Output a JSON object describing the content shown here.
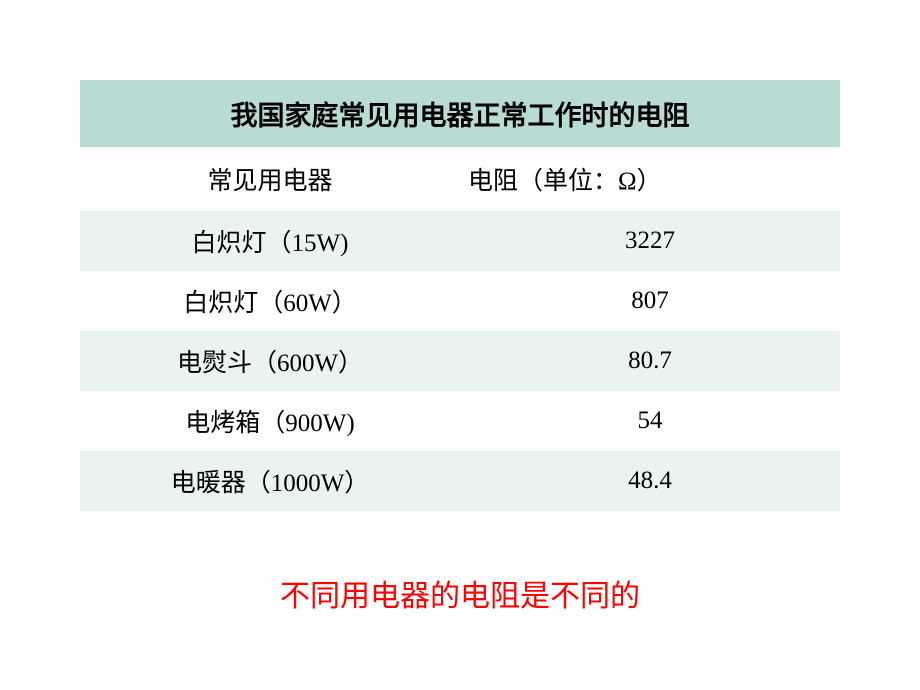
{
  "table": {
    "title": "我国家庭常见用电器正常工作时的电阻",
    "header": {
      "col1": "常见用电器",
      "col2": "电阻（单位：Ω）"
    },
    "rows": [
      {
        "appliance": "白炽灯（15W)",
        "resistance": "3227"
      },
      {
        "appliance": "白炽灯（60W）",
        "resistance": "807"
      },
      {
        "appliance": "电熨斗（600W）",
        "resistance": "80.7"
      },
      {
        "appliance": "电烤箱（900W)",
        "resistance": "54"
      },
      {
        "appliance": "电暖器（1000W）",
        "resistance": "48.4"
      }
    ]
  },
  "caption": "不同用电器的电阻是不同的",
  "style": {
    "title_bg": "#b8dbd4",
    "row_even_bg": "#ebf3f1",
    "row_odd_bg": "#ffffff",
    "title_fontsize": 27,
    "header_fontsize": 25,
    "data_fontsize": 25,
    "caption_fontsize": 30,
    "caption_color": "#ff0000",
    "text_color": "#000000",
    "body_bg": "#ffffff",
    "title_fontweight": "bold"
  }
}
